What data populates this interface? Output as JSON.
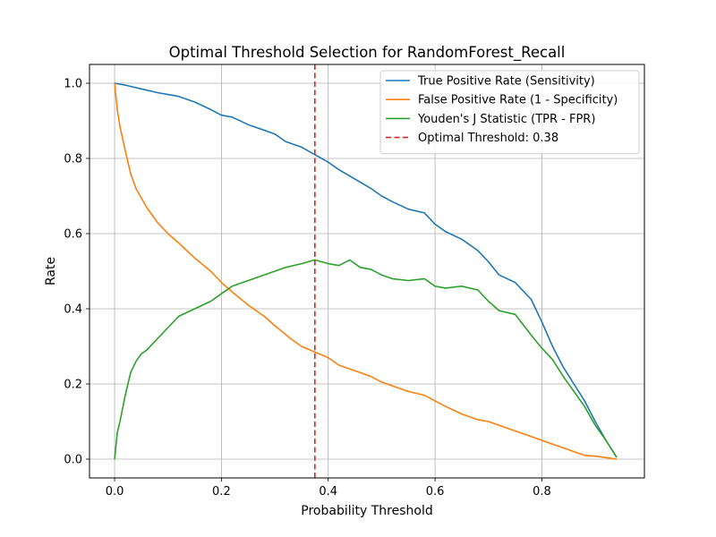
{
  "chart_data": {
    "type": "line",
    "title": "Optimal Threshold Selection for RandomForest_Recall",
    "xlabel": "Probability Threshold",
    "ylabel": "Rate",
    "xlim": [
      -0.047,
      0.992
    ],
    "ylim": [
      -0.05,
      1.05
    ],
    "xticks": [
      0.0,
      0.2,
      0.4,
      0.6,
      0.8
    ],
    "xtick_labels": [
      "0.0",
      "0.2",
      "0.4",
      "0.6",
      "0.8"
    ],
    "yticks": [
      0.0,
      0.2,
      0.4,
      0.6,
      0.8,
      1.0
    ],
    "ytick_labels": [
      "0.0",
      "0.2",
      "0.4",
      "0.6",
      "0.8",
      "1.0"
    ],
    "grid": true,
    "legend_position": "upper right",
    "series": [
      {
        "name": "True Positive Rate (Sensitivity)",
        "color": "#1f77b4",
        "style": "solid",
        "x": [
          0.0,
          0.02,
          0.05,
          0.08,
          0.1,
          0.12,
          0.15,
          0.18,
          0.2,
          0.22,
          0.25,
          0.28,
          0.3,
          0.32,
          0.35,
          0.375,
          0.4,
          0.42,
          0.45,
          0.48,
          0.5,
          0.52,
          0.55,
          0.58,
          0.6,
          0.62,
          0.65,
          0.68,
          0.7,
          0.72,
          0.75,
          0.78,
          0.8,
          0.82,
          0.84,
          0.86,
          0.88,
          0.9,
          0.92,
          0.94
        ],
        "y": [
          1.0,
          0.995,
          0.985,
          0.975,
          0.97,
          0.965,
          0.95,
          0.93,
          0.915,
          0.91,
          0.89,
          0.875,
          0.865,
          0.845,
          0.83,
          0.81,
          0.79,
          0.77,
          0.745,
          0.72,
          0.7,
          0.685,
          0.665,
          0.655,
          0.625,
          0.605,
          0.585,
          0.555,
          0.525,
          0.49,
          0.47,
          0.425,
          0.365,
          0.3,
          0.245,
          0.2,
          0.155,
          0.1,
          0.05,
          0.005
        ]
      },
      {
        "name": "False Positive Rate (1 - Specificity)",
        "color": "#ff7f0e",
        "style": "solid",
        "x": [
          0.0,
          0.005,
          0.01,
          0.02,
          0.03,
          0.04,
          0.06,
          0.08,
          0.1,
          0.12,
          0.15,
          0.18,
          0.2,
          0.22,
          0.25,
          0.28,
          0.3,
          0.33,
          0.35,
          0.375,
          0.4,
          0.42,
          0.45,
          0.48,
          0.5,
          0.52,
          0.55,
          0.58,
          0.6,
          0.62,
          0.65,
          0.68,
          0.7,
          0.72,
          0.75,
          0.78,
          0.8,
          0.82,
          0.84,
          0.86,
          0.88,
          0.9,
          0.92,
          0.94
        ],
        "y": [
          1.0,
          0.93,
          0.885,
          0.82,
          0.76,
          0.72,
          0.67,
          0.63,
          0.6,
          0.575,
          0.535,
          0.5,
          0.47,
          0.445,
          0.41,
          0.38,
          0.355,
          0.32,
          0.3,
          0.285,
          0.27,
          0.25,
          0.235,
          0.22,
          0.205,
          0.195,
          0.18,
          0.17,
          0.155,
          0.14,
          0.12,
          0.105,
          0.1,
          0.09,
          0.075,
          0.06,
          0.05,
          0.04,
          0.03,
          0.02,
          0.01,
          0.008,
          0.004,
          0.0
        ]
      },
      {
        "name": "Youden's J Statistic (TPR - FPR)",
        "color": "#2ca02c",
        "style": "solid",
        "x": [
          0.0,
          0.005,
          0.01,
          0.02,
          0.03,
          0.04,
          0.05,
          0.06,
          0.08,
          0.1,
          0.12,
          0.15,
          0.18,
          0.2,
          0.22,
          0.25,
          0.28,
          0.3,
          0.32,
          0.35,
          0.375,
          0.4,
          0.42,
          0.44,
          0.46,
          0.48,
          0.5,
          0.52,
          0.55,
          0.58,
          0.6,
          0.62,
          0.65,
          0.68,
          0.7,
          0.72,
          0.75,
          0.78,
          0.8,
          0.82,
          0.84,
          0.86,
          0.88,
          0.9,
          0.92,
          0.94
        ],
        "y": [
          0.0,
          0.07,
          0.1,
          0.17,
          0.23,
          0.26,
          0.28,
          0.29,
          0.32,
          0.35,
          0.38,
          0.4,
          0.42,
          0.44,
          0.46,
          0.475,
          0.49,
          0.5,
          0.51,
          0.52,
          0.53,
          0.52,
          0.515,
          0.53,
          0.51,
          0.505,
          0.49,
          0.48,
          0.475,
          0.48,
          0.46,
          0.455,
          0.46,
          0.45,
          0.42,
          0.395,
          0.385,
          0.33,
          0.295,
          0.265,
          0.22,
          0.18,
          0.14,
          0.09,
          0.05,
          0.005
        ]
      },
      {
        "name": "Optimal Threshold: 0.38",
        "color": "#d62728",
        "style": "dashed",
        "x": [
          0.375,
          0.375
        ],
        "y": [
          -0.05,
          1.05
        ]
      }
    ]
  }
}
